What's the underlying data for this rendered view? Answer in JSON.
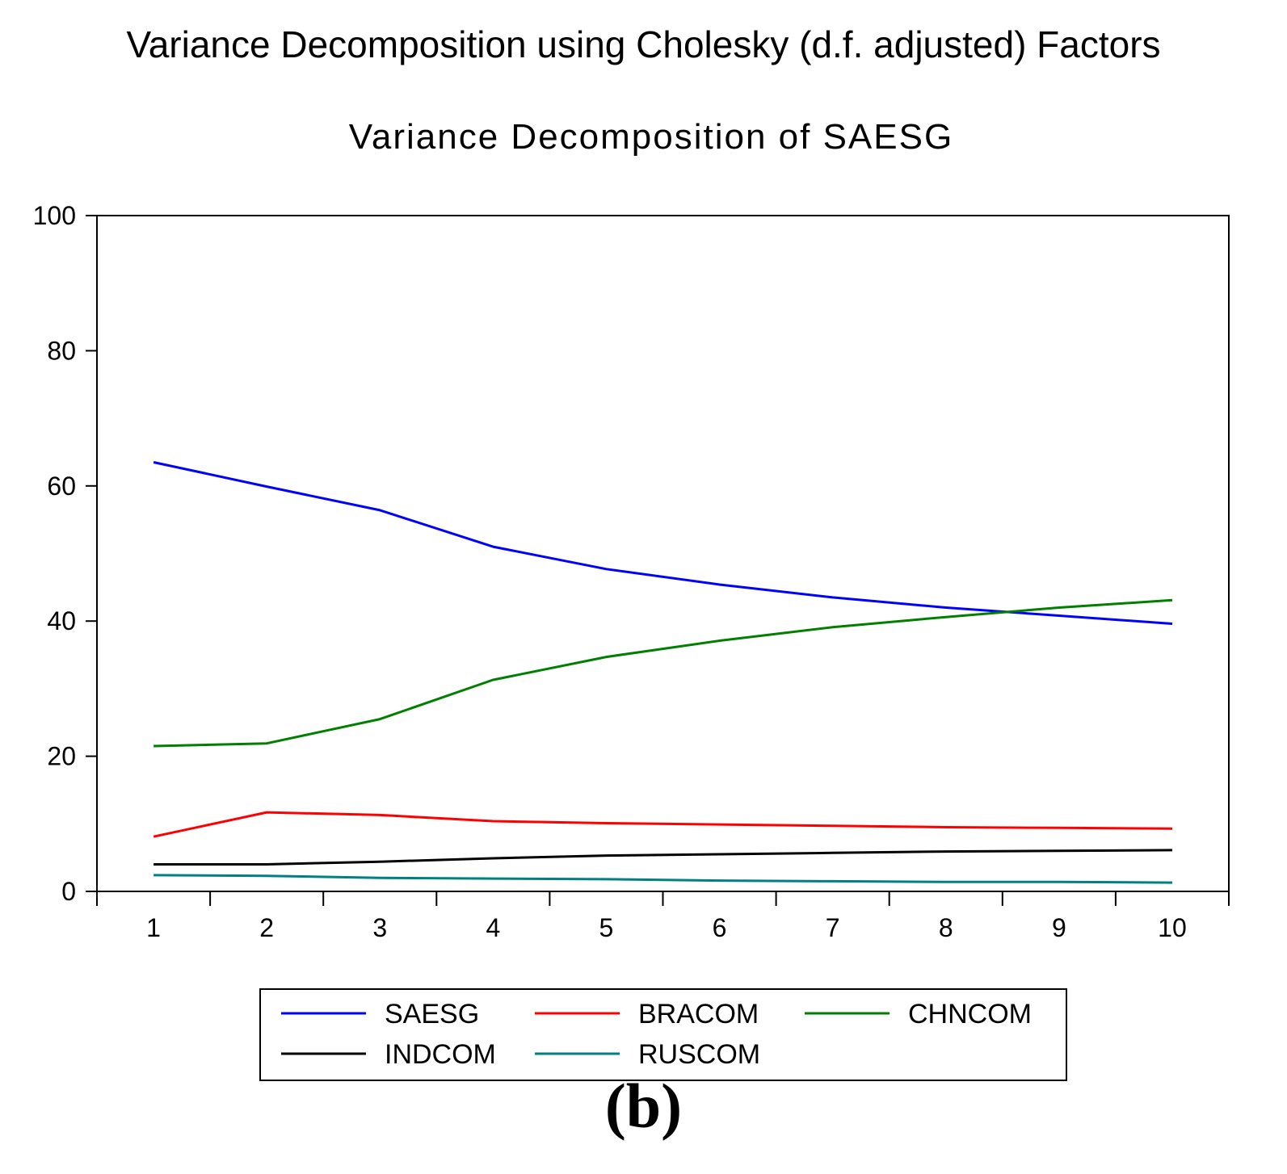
{
  "figure": {
    "title": "Variance Decomposition using Cholesky (d.f. adjusted) Factors",
    "panel_label": "(b)"
  },
  "chart_data": {
    "type": "line",
    "title": "Variance Decomposition of SAESG",
    "xlabel": "",
    "ylabel": "",
    "categories": [
      "1",
      "2",
      "3",
      "4",
      "5",
      "6",
      "7",
      "8",
      "9",
      "10"
    ],
    "x": [
      1,
      2,
      3,
      4,
      5,
      6,
      7,
      8,
      9,
      10
    ],
    "xlim": [
      0.5,
      10.5
    ],
    "ylim": [
      0,
      100
    ],
    "yticks": [
      0,
      20,
      40,
      60,
      80,
      100
    ],
    "grid": false,
    "legend_position": "bottom",
    "series": [
      {
        "name": "SAESG",
        "color": "#0000ff",
        "values": [
          63.5,
          59.9,
          56.4,
          51.0,
          47.7,
          45.4,
          43.5,
          42.0,
          40.8,
          39.6
        ]
      },
      {
        "name": "BRACOM",
        "color": "#ff0000",
        "values": [
          8.1,
          11.7,
          11.3,
          10.4,
          10.1,
          9.9,
          9.7,
          9.5,
          9.4,
          9.3
        ]
      },
      {
        "name": "CHNCOM",
        "color": "#007f00",
        "values": [
          21.5,
          21.9,
          25.5,
          31.3,
          34.7,
          37.1,
          39.1,
          40.6,
          42.0,
          43.1
        ]
      },
      {
        "name": "INDCOM",
        "color": "#000000",
        "values": [
          4.0,
          4.0,
          4.4,
          4.9,
          5.3,
          5.5,
          5.7,
          5.9,
          6.0,
          6.1
        ]
      },
      {
        "name": "RUSCOM",
        "color": "#008080",
        "values": [
          2.4,
          2.3,
          2.0,
          1.9,
          1.8,
          1.6,
          1.5,
          1.4,
          1.4,
          1.3
        ]
      }
    ]
  }
}
